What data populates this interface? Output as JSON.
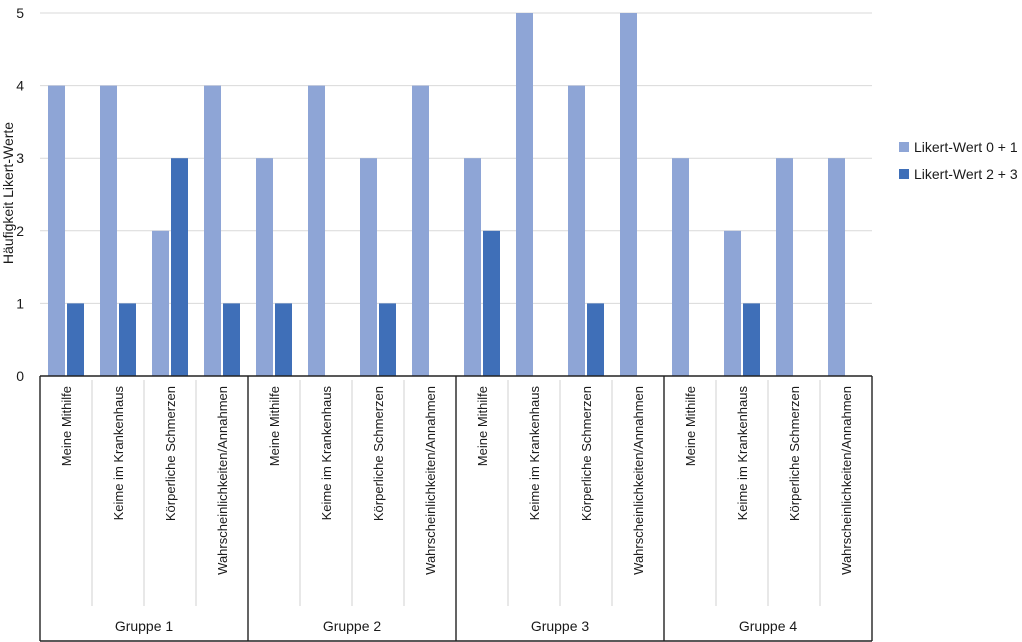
{
  "chart_data": {
    "type": "bar",
    "ylabel": "Häufigkeit Likert-Werte",
    "ylim": [
      0,
      5
    ],
    "yticks": [
      "0",
      "1",
      "2",
      "3",
      "4",
      "5"
    ],
    "grid": true,
    "legend_position": "right",
    "groups": [
      {
        "label": "Gruppe 1",
        "categories": [
          "Meine Mithilfe",
          "Keime im Krankenhaus",
          "Körperliche Schmerzen",
          "Wahrscheinlichkeiten/Annahmen"
        ]
      },
      {
        "label": "Gruppe 2",
        "categories": [
          "Meine Mithilfe",
          "Keime im Krankenhaus",
          "Körperliche Schmerzen",
          "Wahrscheinlichkeiten/Annahmen"
        ]
      },
      {
        "label": "Gruppe 3",
        "categories": [
          "Meine Mithilfe",
          "Keime im Krankenhaus",
          "Körperliche Schmerzen",
          "Wahrscheinlichkeiten/Annahmen"
        ]
      },
      {
        "label": "Gruppe 4",
        "categories": [
          "Meine Mithilfe",
          "Keime im Krankenhaus",
          "Körperliche Schmerzen",
          "Wahrscheinlichkeiten/Annahmen"
        ]
      }
    ],
    "series": [
      {
        "name": "Likert-Wert 0 + 1",
        "color": "#8ea5d6",
        "values": [
          4,
          4,
          2,
          4,
          3,
          4,
          3,
          4,
          3,
          5,
          4,
          5,
          3,
          2,
          3,
          3
        ]
      },
      {
        "name": "Likert-Wert 2 + 3",
        "color": "#3f6fb8",
        "values": [
          1,
          1,
          3,
          1,
          1,
          0,
          1,
          0,
          2,
          0,
          1,
          0,
          0,
          1,
          0,
          0
        ]
      }
    ]
  }
}
